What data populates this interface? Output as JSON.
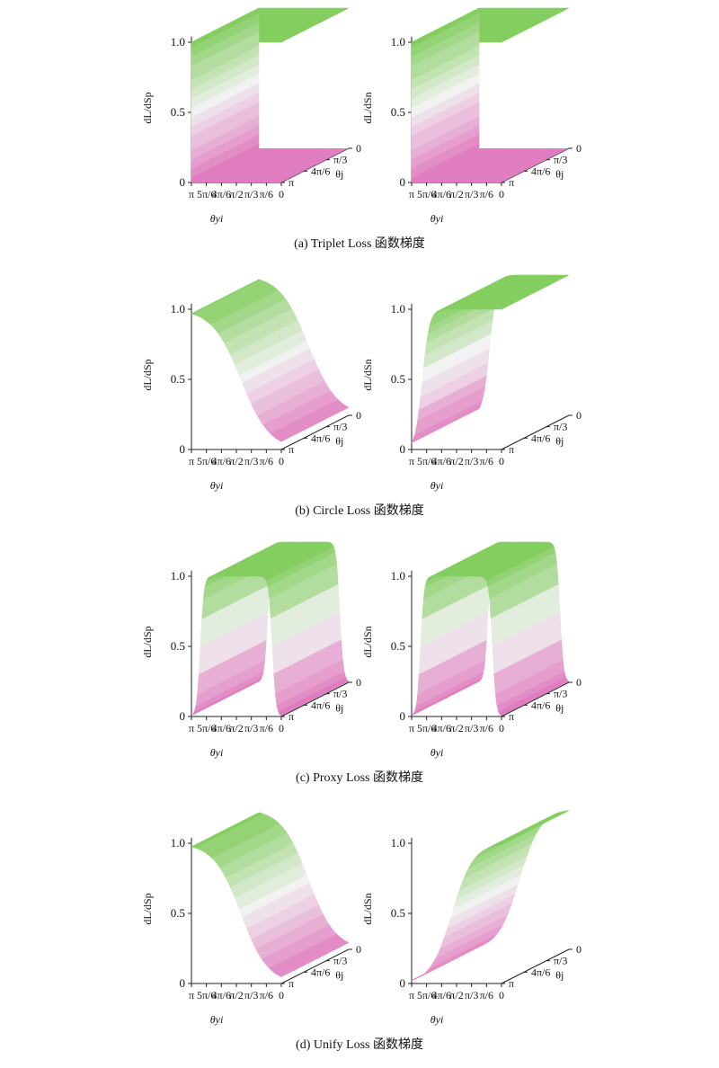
{
  "chart_data": [
    {
      "type": "surface",
      "caption": "(a) Triplet Loss 函数梯度",
      "z_ticks": [
        "0",
        "0.5",
        "1.0"
      ],
      "x_ticks": [
        "π",
        "5π/6",
        "4π/6",
        "π/2",
        "π/3",
        "π/6",
        "0"
      ],
      "y_ticks": [
        "0",
        "π/3",
        "4π/6",
        "π"
      ],
      "xlabel": "θyi",
      "ylabel": "θj",
      "panels": [
        {
          "zlabel": "dL/dSp",
          "shape": "step",
          "edge": 0.0,
          "width": 0.02,
          "wall": "front",
          "z_samples": [
            1,
            1,
            1,
            1,
            1,
            1,
            1
          ]
        },
        {
          "zlabel": "dL/dSn",
          "shape": "step",
          "edge": 0.0,
          "width": 0.02,
          "wall": "front",
          "z_samples": [
            1,
            1,
            1,
            1,
            1,
            1,
            1
          ]
        }
      ]
    },
    {
      "type": "surface",
      "caption": "(b) Circle Loss 函数梯度",
      "z_ticks": [
        "0",
        "0.5",
        "1.0"
      ],
      "x_ticks": [
        "π",
        "5π/6",
        "4π/6",
        "π/2",
        "π/3",
        "π/6",
        "0"
      ],
      "y_ticks": [
        "0",
        "π/3",
        "4π/6",
        "π"
      ],
      "xlabel": "θyi",
      "ylabel": "θj",
      "panels": [
        {
          "zlabel": "dL/dSp",
          "shape": "fall",
          "edge": 0.55,
          "width": 0.16,
          "wall": "none",
          "z_samples": [
            1.0,
            0.95,
            0.75,
            0.47,
            0.2,
            0.05,
            0.0
          ]
        },
        {
          "zlabel": "dL/dSn",
          "shape": "rise",
          "edge": 0.12,
          "width": 0.04,
          "wall": "none",
          "z_samples": [
            0.0,
            1.0,
            1.0,
            1.0,
            1.0,
            1.0,
            1.0
          ]
        }
      ]
    },
    {
      "type": "surface",
      "caption": "(c) Proxy Loss 函数梯度",
      "z_ticks": [
        "0",
        "0.5",
        "1.0"
      ],
      "x_ticks": [
        "π",
        "5π/6",
        "4π/6",
        "π/2",
        "π/3",
        "π/6",
        "0"
      ],
      "y_ticks": [
        "0",
        "π/3",
        "4π/6",
        "π"
      ],
      "xlabel": "θyi",
      "ylabel": "θj",
      "panels": [
        {
          "zlabel": "dL/dSp",
          "shape": "box",
          "edge": 0.1,
          "width": 0.02,
          "wall": "none",
          "z_samples": [
            0.0,
            1.0,
            1.0,
            1.0,
            1.0,
            1.0,
            0.0
          ]
        },
        {
          "zlabel": "dL/dSn",
          "shape": "box",
          "edge": 0.1,
          "width": 0.02,
          "wall": "none",
          "z_samples": [
            0.0,
            1.0,
            1.0,
            1.0,
            1.0,
            1.0,
            0.0
          ]
        }
      ]
    },
    {
      "type": "surface",
      "caption": "(d) Unify Loss 函数梯度",
      "z_ticks": [
        "0",
        "0.5",
        "1.0"
      ],
      "x_ticks": [
        "π",
        "5π/6",
        "4π/6",
        "π/2",
        "π/3",
        "π/6",
        "0"
      ],
      "y_ticks": [
        "0",
        "π/3",
        "4π/6",
        "π"
      ],
      "xlabel": "θyi",
      "ylabel": "θj",
      "panels": [
        {
          "zlabel": "dL/dSp",
          "shape": "fall",
          "edge": 0.55,
          "width": 0.15,
          "wall": "none",
          "z_samples": [
            1.0,
            0.95,
            0.76,
            0.48,
            0.22,
            0.06,
            0.0
          ]
        },
        {
          "zlabel": "dL/dSn",
          "shape": "rise",
          "edge": 0.45,
          "width": 0.12,
          "wall": "none",
          "z_samples": [
            0.0,
            0.05,
            0.3,
            0.65,
            0.9,
            0.98,
            1.0
          ]
        }
      ]
    }
  ]
}
